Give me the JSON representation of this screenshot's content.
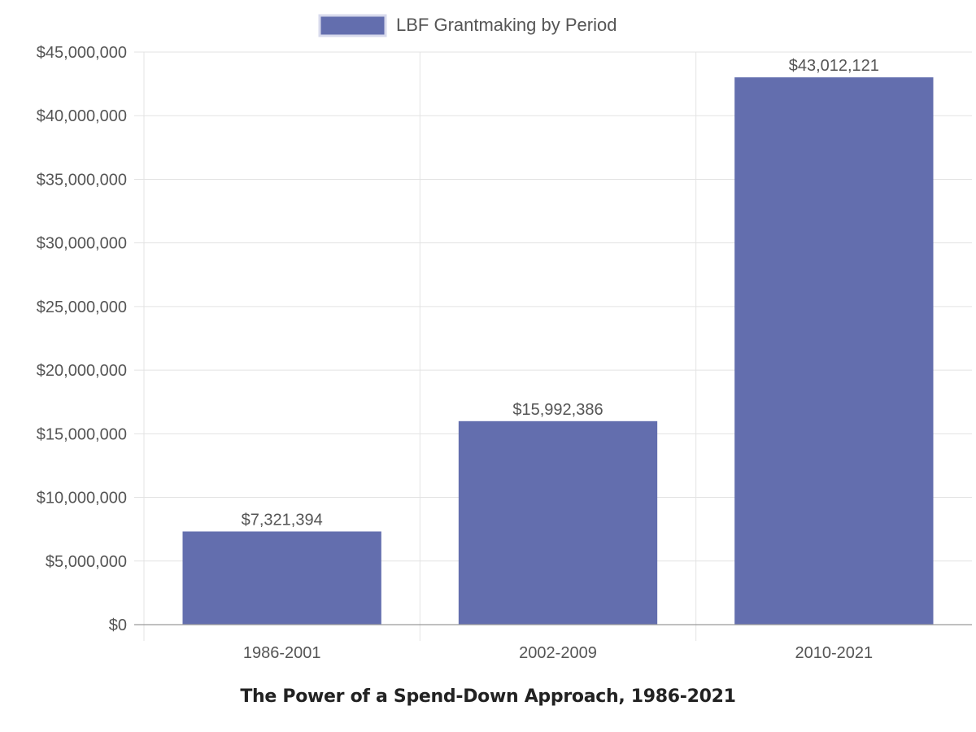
{
  "chart_data": {
    "type": "bar",
    "title": "The Power of a Spend-Down Approach, 1986-2021",
    "xlabel": "",
    "ylabel": "",
    "categories": [
      "1986-2001",
      "2002-2009",
      "2010-2021"
    ],
    "series": [
      {
        "name": "LBF Grantmaking by Period",
        "values": [
          7321394,
          15992386,
          43012121
        ],
        "data_labels": [
          "$7,321,394",
          "$15,992,386",
          "$43,012,121"
        ]
      }
    ],
    "ylim": [
      0,
      45000000
    ],
    "y_ticks": [
      0,
      5000000,
      10000000,
      15000000,
      20000000,
      25000000,
      30000000,
      35000000,
      40000000,
      45000000
    ],
    "y_tick_labels": [
      "$0",
      "$5,000,000",
      "$10,000,000",
      "$15,000,000",
      "$20,000,000",
      "$25,000,000",
      "$30,000,000",
      "$35,000,000",
      "$40,000,000",
      "$45,000,000"
    ],
    "grid": true,
    "legend_position": "top-center",
    "colors": {
      "bar": "#636eae",
      "bar_legend_border": "#d7d9ec",
      "grid": "#e3e3e3",
      "axis": "#9a9a9a",
      "text": "#555555"
    }
  }
}
